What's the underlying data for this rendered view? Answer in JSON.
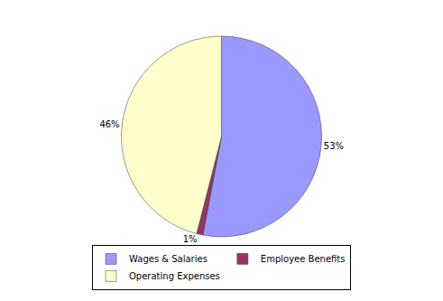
{
  "chart_data": {
    "type": "pie",
    "categories": [
      "Wages & Salaries",
      "Employee Benefits",
      "Operating Expenses"
    ],
    "values": [
      53,
      1,
      46
    ],
    "value_labels": [
      "53%",
      "1%",
      "46%"
    ],
    "colors": [
      "#9999ff",
      "#993366",
      "#ffffcc"
    ],
    "data_labels": true,
    "legend": "bottom"
  }
}
